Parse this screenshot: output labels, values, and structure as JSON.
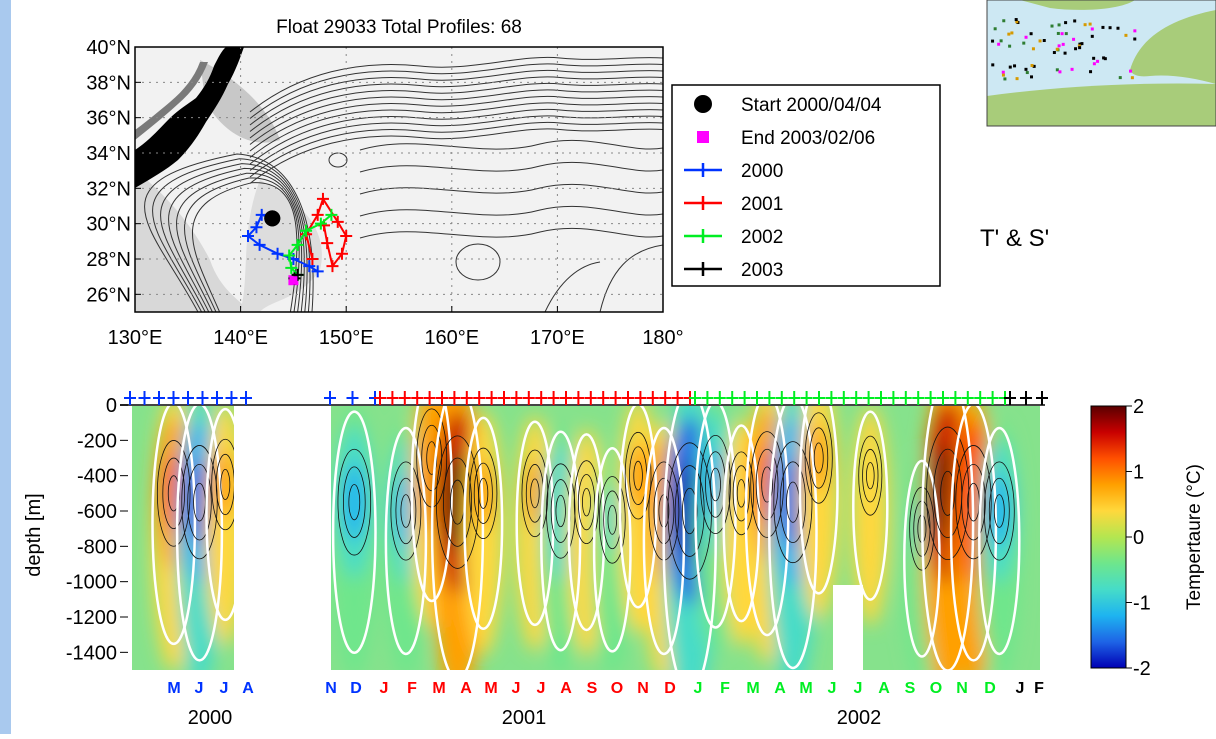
{
  "map_panel": {
    "title": "Float 29033 Total Profiles: 68",
    "y_ticks": [
      "40°N",
      "38°N",
      "36°N",
      "34°N",
      "32°N",
      "30°N",
      "28°N",
      "26°N"
    ],
    "x_ticks": [
      "130°E",
      "140°E",
      "150°E",
      "160°E",
      "170°E",
      "180°"
    ],
    "legend": [
      {
        "label": "Start 2000/04/04",
        "marker": "circle",
        "color": "#000000"
      },
      {
        "label": "End  2003/02/06",
        "marker": "square",
        "color": "#ff00ff"
      },
      {
        "label": "2000",
        "marker": "plus-line",
        "color": "#0033ff"
      },
      {
        "label": "2001",
        "marker": "plus-line",
        "color": "#ff0000"
      },
      {
        "label": "2002",
        "marker": "plus-line",
        "color": "#00ee22"
      },
      {
        "label": "2003",
        "marker": "plus-line",
        "color": "#000000"
      }
    ]
  },
  "side_label": "T' & S'",
  "section_panel": {
    "ylabel": "depth [m]",
    "y_ticks": [
      "0",
      "-200",
      "-400",
      "-600",
      "-800",
      "-1000",
      "-1200",
      "-1400"
    ],
    "months": [
      {
        "m": "M",
        "c": "#0033ff"
      },
      {
        "m": "J",
        "c": "#0033ff"
      },
      {
        "m": "J",
        "c": "#0033ff"
      },
      {
        "m": "A",
        "c": "#0033ff"
      },
      {
        "m": "N",
        "c": "#0033ff"
      },
      {
        "m": "D",
        "c": "#0033ff"
      },
      {
        "m": "J",
        "c": "#ff0000"
      },
      {
        "m": "F",
        "c": "#ff0000"
      },
      {
        "m": "M",
        "c": "#ff0000"
      },
      {
        "m": "A",
        "c": "#ff0000"
      },
      {
        "m": "M",
        "c": "#ff0000"
      },
      {
        "m": "J",
        "c": "#ff0000"
      },
      {
        "m": "J",
        "c": "#ff0000"
      },
      {
        "m": "A",
        "c": "#ff0000"
      },
      {
        "m": "S",
        "c": "#ff0000"
      },
      {
        "m": "O",
        "c": "#ff0000"
      },
      {
        "m": "N",
        "c": "#ff0000"
      },
      {
        "m": "D",
        "c": "#ff0000"
      },
      {
        "m": "J",
        "c": "#00ee22"
      },
      {
        "m": "F",
        "c": "#00ee22"
      },
      {
        "m": "M",
        "c": "#00ee22"
      },
      {
        "m": "A",
        "c": "#00ee22"
      },
      {
        "m": "M",
        "c": "#00ee22"
      },
      {
        "m": "J",
        "c": "#00ee22"
      },
      {
        "m": "J",
        "c": "#00ee22"
      },
      {
        "m": "A",
        "c": "#00ee22"
      },
      {
        "m": "S",
        "c": "#00ee22"
      },
      {
        "m": "O",
        "c": "#00ee22"
      },
      {
        "m": "N",
        "c": "#00ee22"
      },
      {
        "m": "D",
        "c": "#00ee22"
      },
      {
        "m": "J",
        "c": "#000000"
      },
      {
        "m": "F",
        "c": "#000000"
      }
    ],
    "years": [
      "2000",
      "2001",
      "2002"
    ],
    "colorbar": {
      "label": "Tempertaure (°C)",
      "ticks": [
        "2",
        "1",
        "0",
        "-1",
        "-2"
      ],
      "colors": [
        "#5a0000",
        "#c80000",
        "#ff5000",
        "#ffa000",
        "#ffd83c",
        "#b4e650",
        "#6ee68c",
        "#46dcc8",
        "#1eb4f0",
        "#1e64e6",
        "#0000b4"
      ]
    }
  },
  "chart_data": [
    {
      "type": "scatter",
      "title": "Float 29033 Total Profiles: 68",
      "xlabel": "",
      "ylabel": "",
      "xlim": [
        130,
        180
      ],
      "ylim": [
        25,
        40
      ],
      "x_unit": "°E",
      "y_unit": "°N",
      "grid": true,
      "legend_position": "right",
      "series": [
        {
          "name": "Start 2000/04/04",
          "color": "#000000",
          "points": [
            [
              143,
              30.3
            ]
          ]
        },
        {
          "name": "End  2003/02/06",
          "color": "#ff00ff",
          "points": [
            [
              145,
              26.8
            ]
          ]
        },
        {
          "name": "2000",
          "color": "#0033ff",
          "points": [
            [
              143,
              30.3
            ],
            [
              142,
              30.5
            ],
            [
              141.5,
              29.8
            ],
            [
              140.7,
              29.3
            ],
            [
              141.8,
              28.8
            ],
            [
              143.5,
              28.3
            ],
            [
              145,
              28.0
            ],
            [
              146.5,
              27.6
            ],
            [
              147.3,
              27.3
            ]
          ]
        },
        {
          "name": "2001",
          "color": "#ff0000",
          "points": [
            [
              146.8,
              28.0
            ],
            [
              146.2,
              29.4
            ],
            [
              147.3,
              30.5
            ],
            [
              147.8,
              31.4
            ],
            [
              149.2,
              30.1
            ],
            [
              150.0,
              29.3
            ],
            [
              149.6,
              28.3
            ],
            [
              148.7,
              27.6
            ],
            [
              148.2,
              28.9
            ],
            [
              147.9,
              29.9
            ]
          ]
        },
        {
          "name": "2002",
          "color": "#00ee22",
          "points": [
            [
              148.6,
              30.5
            ],
            [
              147.6,
              30.0
            ],
            [
              146.2,
              29.6
            ],
            [
              145.4,
              28.8
            ],
            [
              144.6,
              28.2
            ],
            [
              144.8,
              27.5
            ],
            [
              145.4,
              27.1
            ]
          ]
        },
        {
          "name": "2003",
          "color": "#000000",
          "points": [
            [
              145.4,
              27.1
            ],
            [
              145.1,
              26.9
            ]
          ]
        }
      ]
    },
    {
      "type": "heatmap",
      "title": "",
      "xlabel": "",
      "ylabel": "depth [m]",
      "ylim": [
        -1500,
        0
      ],
      "zlim": [
        -2,
        2
      ],
      "colorbar_label": "Tempertaure (°C)",
      "x_start": "2000-04",
      "x_end": "2003-02",
      "gap": [
        "2000-08",
        "2000-11"
      ],
      "anomaly_cores": [
        {
          "time": "2000-05",
          "depth": -500,
          "value": 1.2
        },
        {
          "time": "2000-06",
          "depth": -550,
          "value": -1.4
        },
        {
          "time": "2000-07",
          "depth": -450,
          "value": 0.8
        },
        {
          "time": "2000-12",
          "depth": -550,
          "value": -1.2
        },
        {
          "time": "2001-02",
          "depth": -600,
          "value": -1.0
        },
        {
          "time": "2001-03",
          "depth": -300,
          "value": 1.0
        },
        {
          "time": "2001-04",
          "depth": -550,
          "value": 1.9
        },
        {
          "time": "2001-05",
          "depth": -500,
          "value": 0.8
        },
        {
          "time": "2001-07",
          "depth": -500,
          "value": 0.7
        },
        {
          "time": "2001-08",
          "depth": -600,
          "value": -0.9
        },
        {
          "time": "2001-09",
          "depth": -550,
          "value": 0.6
        },
        {
          "time": "2001-10",
          "depth": -650,
          "value": -0.7
        },
        {
          "time": "2001-11",
          "depth": -400,
          "value": 0.7
        },
        {
          "time": "2001-12",
          "depth": -600,
          "value": 1.0
        },
        {
          "time": "2002-01",
          "depth": -600,
          "value": -2.0
        },
        {
          "time": "2002-02",
          "depth": -450,
          "value": -1.0
        },
        {
          "time": "2002-03",
          "depth": -500,
          "value": 0.6
        },
        {
          "time": "2002-04",
          "depth": -450,
          "value": 1.2
        },
        {
          "time": "2002-05",
          "depth": -550,
          "value": -1.6
        },
        {
          "time": "2002-06",
          "depth": -300,
          "value": 0.8
        },
        {
          "time": "2002-08",
          "depth": -400,
          "value": 0.5
        },
        {
          "time": "2002-10",
          "depth": -700,
          "value": -0.6
        },
        {
          "time": "2002-11",
          "depth": -500,
          "value": 1.9
        },
        {
          "time": "2002-12",
          "depth": -550,
          "value": 1.4
        },
        {
          "time": "2003-01",
          "depth": -600,
          "value": -1.0
        }
      ]
    }
  ]
}
